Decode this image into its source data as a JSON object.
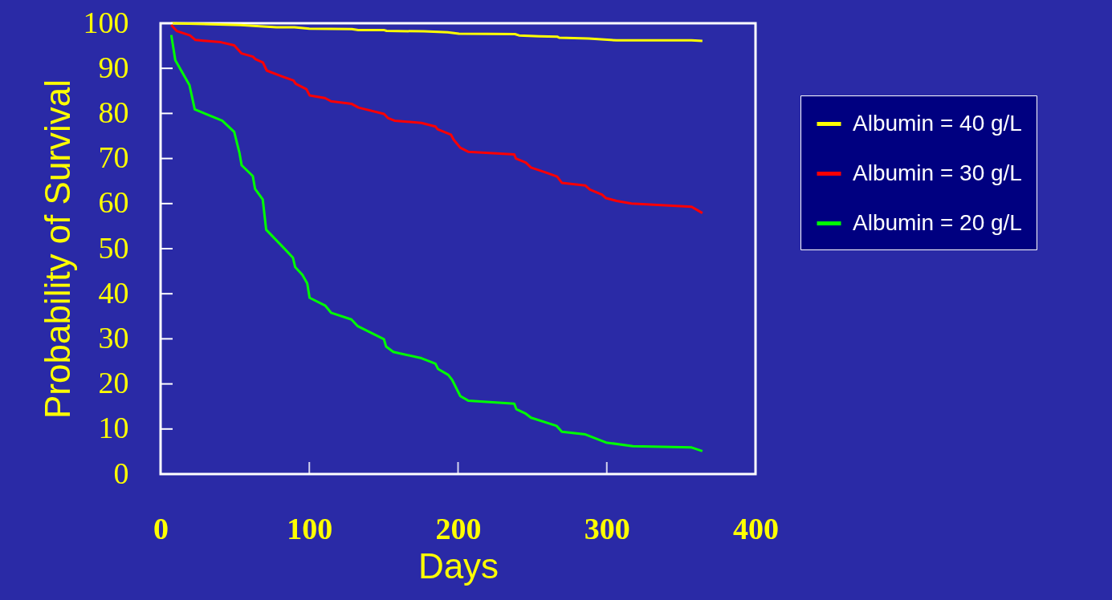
{
  "chart_data": {
    "type": "line",
    "xlabel": "Days",
    "ylabel": "Probability of Survival",
    "xlim": [
      0,
      400
    ],
    "xticks": [
      0,
      100,
      200,
      300,
      400
    ],
    "ylim": [
      0,
      100
    ],
    "yticks": [
      0,
      10,
      20,
      30,
      40,
      50,
      60,
      70,
      80,
      90,
      100
    ],
    "grid": false,
    "legend": "right",
    "marker": "none",
    "line_style": "solid",
    "series": [
      {
        "name": "Albumin = 40 g/L",
        "color": "#ffff00",
        "x": [
          7,
          54,
          69,
          78,
          90,
          100,
          128.6,
          133,
          150,
          152,
          177,
          193,
          200.6,
          238.3,
          241,
          254.5,
          266.9,
          268,
          287.7,
          306.7,
          357,
          364.3
        ],
        "values": [
          100,
          99.6,
          99.3,
          99.1,
          99.1,
          98.8,
          98.7,
          98.5,
          98.5,
          98.3,
          98.2,
          98,
          97.7,
          97.6,
          97.3,
          97.1,
          97,
          96.8,
          96.6,
          96.2,
          96.2,
          96.1
        ]
      },
      {
        "name": "Albumin = 30 g/L",
        "color": "#ff0000",
        "x": [
          7.2,
          10.8,
          19.8,
          23.4,
          40.5,
          49.5,
          54.5,
          62.1,
          63.9,
          68.8,
          71.4,
          81.8,
          89.4,
          90.8,
          98,
          100.2,
          110.6,
          114.6,
          128.6,
          133.1,
          150.2,
          152.8,
          157.3,
          175.4,
          184.8,
          186.2,
          195.2,
          197,
          201.5,
          206.8,
          237.8,
          238.9,
          245.5,
          249.1,
          259.9,
          266.6,
          269.8,
          285.6,
          288.7,
          296.8,
          299.5,
          306.7,
          316.6,
          357,
          364.3
        ],
        "values": [
          99.6,
          98.3,
          97.3,
          96.3,
          95.8,
          95.1,
          93.3,
          92.6,
          92,
          91.3,
          89.5,
          88.2,
          87.3,
          86.6,
          85.4,
          84,
          83.4,
          82.7,
          82.1,
          81.3,
          79.9,
          79,
          78.4,
          77.9,
          77.1,
          76.5,
          75.3,
          74.2,
          72.4,
          71.5,
          70.9,
          70,
          69.1,
          68,
          66.8,
          66,
          64.6,
          64,
          63.1,
          62,
          61.2,
          60.6,
          60,
          59.3,
          57.9
        ]
      },
      {
        "name": "Albumin = 20 g/L",
        "color": "#00ff00",
        "x": [
          7.2,
          9.9,
          19.4,
          23,
          41.4,
          49.5,
          53,
          54.5,
          62,
          63.5,
          68.7,
          71,
          82.7,
          89,
          90.5,
          95.3,
          98.6,
          100.2,
          110.6,
          114.6,
          128.3,
          132.6,
          150.2,
          151.6,
          156.5,
          175.4,
          184.8,
          186.6,
          193.4,
          196,
          201.5,
          206.8,
          237.8,
          239.2,
          245.5,
          249.1,
          266.2,
          269.8,
          285.6,
          299.5,
          317.5,
          357,
          364.3
        ],
        "values": [
          97.4,
          91.8,
          86.3,
          80.9,
          78.4,
          75.9,
          71.3,
          68.5,
          66.1,
          63.3,
          60.9,
          54.2,
          50.2,
          48,
          45.9,
          44.2,
          42.3,
          39.1,
          37.4,
          35.8,
          34.3,
          32.8,
          29.9,
          28.3,
          27.1,
          25.7,
          24.5,
          23.3,
          22,
          20.9,
          17.3,
          16.3,
          15.6,
          14.4,
          13.4,
          12.5,
          10.7,
          9.4,
          8.8,
          7,
          6.2,
          5.9,
          5.1
        ]
      }
    ]
  }
}
